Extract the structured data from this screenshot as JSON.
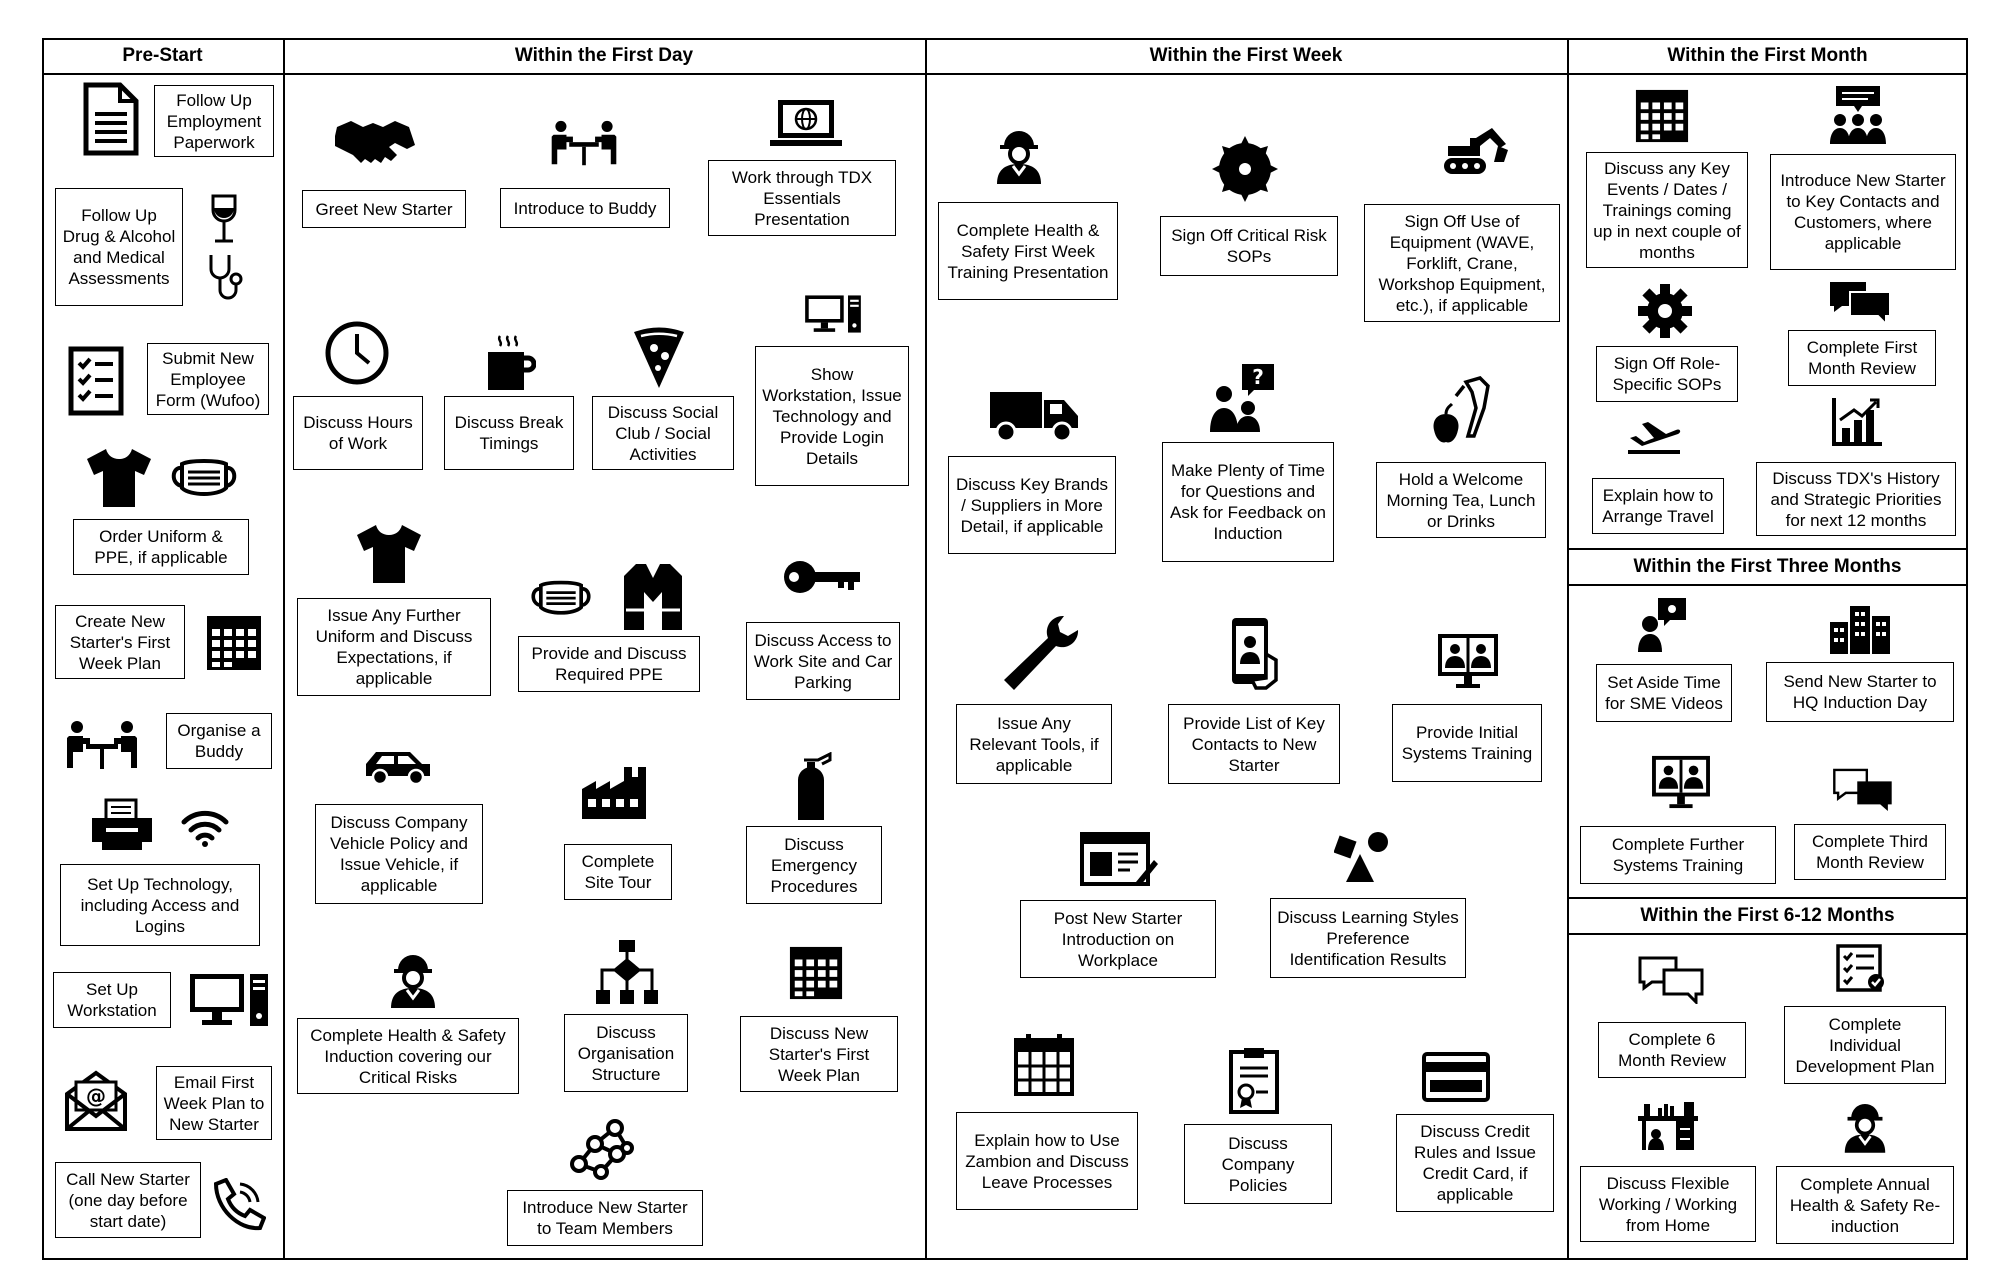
{
  "columns": {
    "pre_start": "Pre-Start",
    "first_day": "Within the First Day",
    "first_week": "Within the First Week",
    "first_month": "Within the First Month",
    "first_three_months": "Within the First Three Months",
    "first_6_12_months": "Within the First 6-12 Months"
  },
  "pre_start": {
    "paperwork": "Follow Up Employment Paperwork",
    "drug": "Follow Up Drug & Alcohol and Medical Assessments",
    "form": "Submit New Employee Form (Wufoo)",
    "uniform": "Order Uniform & PPE, if applicable",
    "week_plan": "Create New Starter's First Week Plan",
    "buddy": "Organise a Buddy",
    "technology": "Set Up Technology, including Access and Logins",
    "workstation": "Set Up Workstation",
    "email": "Email First Week Plan to New Starter",
    "call": "Call New Starter (one day before start date)"
  },
  "first_day": {
    "greet": "Greet New Starter",
    "buddy": "Introduce to Buddy",
    "tdx": "Work through TDX Essentials Presentation",
    "hours": "Discuss Hours of Work",
    "break": "Discuss Break Timings",
    "social": "Discuss Social Club / Social Activities",
    "workstation": "Show Workstation, Issue Technology and Provide Login Details",
    "uniform": "Issue Any Further Uniform and Discuss Expectations, if applicable",
    "ppe": "Provide and Discuss Required PPE",
    "access": "Discuss Access to Work Site and Car Parking",
    "vehicle": "Discuss Company Vehicle Policy and Issue Vehicle, if applicable",
    "tour": "Complete Site Tour",
    "emergency": "Discuss Emergency Procedures",
    "induction": "Complete Health & Safety Induction covering our Critical Risks",
    "structure": "Discuss Organisation Structure",
    "week_plan": "Discuss New Starter's First Week Plan",
    "team": "Introduce New Starter to Team Members"
  },
  "first_week": {
    "hs_training": "Complete Health & Safety First Week Training Presentation",
    "sops": "Sign Off Critical Risk SOPs",
    "equipment": "Sign Off Use of Equipment (WAVE, Forklift, Crane, Workshop Equipment, etc.), if applicable",
    "brands": "Discuss Key Brands / Suppliers in More Detail, if applicable",
    "questions": "Make Plenty of Time for Questions and Ask for Feedback on Induction",
    "tea": "Hold a Welcome Morning Tea, Lunch or Drinks",
    "tools": "Issue Any Relevant Tools, if applicable",
    "contacts": "Provide List of Key Contacts to New Starter",
    "systems": "Provide Initial Systems Training",
    "post": "Post New Starter Introduction on Workplace",
    "learning": "Discuss Learning Styles Preference Identification Results",
    "zambion": "Explain how to Use Zambion and Discuss Leave Processes",
    "policies": "Discuss Company Policies",
    "credit": "Discuss Credit Rules and Issue Credit Card, if applicable"
  },
  "first_month": {
    "events": "Discuss any Key Events / Dates / Trainings coming up in next couple of months",
    "introduce": "Introduce New Starter to Key Contacts and Customers, where applicable",
    "role_sops": "Sign Off Role-Specific SOPs",
    "review": "Complete First Month Review",
    "travel": "Explain how to Arrange Travel",
    "history": "Discuss TDX's History and Strategic Priorities for next 12 months"
  },
  "first_three_months": {
    "sme": "Set Aside Time for SME Videos",
    "hq": "Send New Starter to HQ Induction Day",
    "systems": "Complete Further Systems Training",
    "review": "Complete Third Month Review"
  },
  "first_6_12_months": {
    "review6": "Complete 6 Month Review",
    "idp": "Complete Individual Development Plan",
    "flexible": "Discuss Flexible Working / Working from Home",
    "annual": "Complete Annual Health & Safety Re-induction"
  }
}
